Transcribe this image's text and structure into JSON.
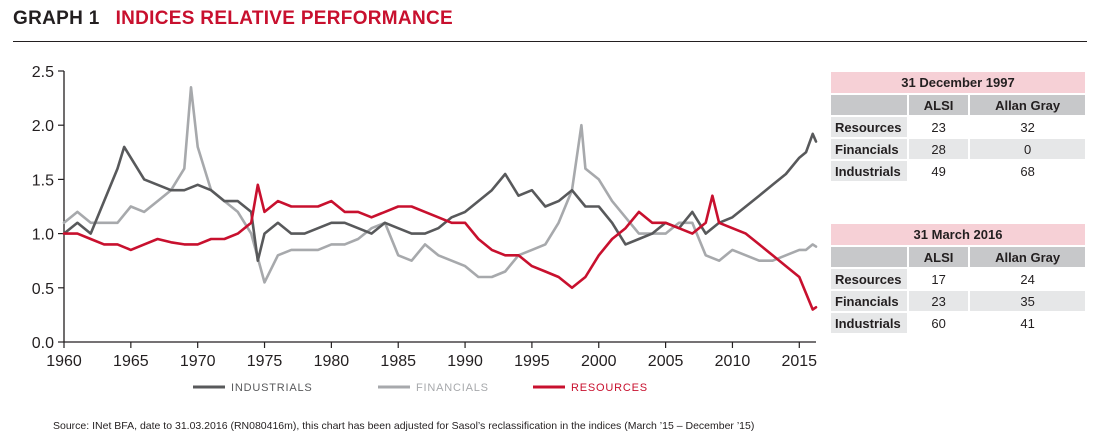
{
  "header": {
    "graph_label": "GRAPH 1",
    "title": "INDICES RELATIVE PERFORMANCE"
  },
  "colors": {
    "industrials": "#58595b",
    "financials": "#a7a9ac",
    "resources": "#c8102e",
    "title_red": "#c8102e"
  },
  "chart_data": {
    "type": "line",
    "title": "INDICES RELATIVE PERFORMANCE",
    "xlabel": "",
    "ylabel": "",
    "xlim": [
      1960,
      2016.25
    ],
    "ylim": [
      0,
      2.5
    ],
    "x_ticks": [
      "1960",
      "1965",
      "1970",
      "1975",
      "1980",
      "1985",
      "1990",
      "1995",
      "2000",
      "2005",
      "2010",
      "2015"
    ],
    "y_ticks": [
      "0.0",
      "0.5",
      "1.0",
      "1.5",
      "2.0",
      "2.5"
    ],
    "grid": false,
    "legend_position": "bottom",
    "series": [
      {
        "name": "INDUSTRIALS",
        "color": "#58595b",
        "x": [
          1960,
          1961,
          1962,
          1963,
          1964,
          1964.5,
          1965,
          1966,
          1967,
          1968,
          1969,
          1970,
          1971,
          1972,
          1973,
          1974,
          1974.5,
          1975,
          1976,
          1977,
          1978,
          1979,
          1980,
          1981,
          1982,
          1983,
          1984,
          1985,
          1986,
          1987,
          1988,
          1989,
          1990,
          1991,
          1992,
          1993,
          1994,
          1995,
          1996,
          1997,
          1998,
          1999,
          2000,
          2001,
          2002,
          2003,
          2004,
          2005,
          2006,
          2007,
          2008,
          2009,
          2010,
          2011,
          2012,
          2013,
          2014,
          2015,
          2015.5,
          2016,
          2016.25
        ],
        "y": [
          1.0,
          1.1,
          1.0,
          1.3,
          1.6,
          1.8,
          1.7,
          1.5,
          1.45,
          1.4,
          1.4,
          1.45,
          1.4,
          1.3,
          1.3,
          1.2,
          0.75,
          1.0,
          1.1,
          1.0,
          1.0,
          1.05,
          1.1,
          1.1,
          1.05,
          1.0,
          1.1,
          1.05,
          1.0,
          1.0,
          1.05,
          1.15,
          1.2,
          1.3,
          1.4,
          1.55,
          1.35,
          1.4,
          1.25,
          1.3,
          1.4,
          1.25,
          1.25,
          1.1,
          0.9,
          0.95,
          1.0,
          1.1,
          1.05,
          1.2,
          1.0,
          1.1,
          1.15,
          1.25,
          1.35,
          1.45,
          1.55,
          1.7,
          1.75,
          1.92,
          1.85
        ]
      },
      {
        "name": "FINANCIALS",
        "color": "#a7a9ac",
        "x": [
          1960,
          1961,
          1962,
          1963,
          1964,
          1965,
          1966,
          1967,
          1968,
          1969,
          1969.5,
          1970,
          1971,
          1972,
          1973,
          1974,
          1975,
          1976,
          1977,
          1978,
          1979,
          1980,
          1981,
          1982,
          1983,
          1984,
          1985,
          1986,
          1987,
          1988,
          1989,
          1990,
          1991,
          1992,
          1993,
          1994,
          1995,
          1996,
          1997,
          1998,
          1998.7,
          1999,
          2000,
          2001,
          2002,
          2003,
          2004,
          2005,
          2006,
          2007,
          2008,
          2009,
          2010,
          2011,
          2012,
          2013,
          2014,
          2015,
          2015.5,
          2016,
          2016.25
        ],
        "y": [
          1.1,
          1.2,
          1.1,
          1.1,
          1.1,
          1.25,
          1.2,
          1.3,
          1.4,
          1.6,
          2.35,
          1.8,
          1.4,
          1.3,
          1.2,
          1.0,
          0.55,
          0.8,
          0.85,
          0.85,
          0.85,
          0.9,
          0.9,
          0.95,
          1.05,
          1.1,
          0.8,
          0.75,
          0.9,
          0.8,
          0.75,
          0.7,
          0.6,
          0.6,
          0.65,
          0.8,
          0.85,
          0.9,
          1.1,
          1.4,
          2.0,
          1.6,
          1.5,
          1.3,
          1.15,
          1.0,
          1.0,
          1.0,
          1.1,
          1.1,
          0.8,
          0.75,
          0.85,
          0.8,
          0.75,
          0.75,
          0.8,
          0.85,
          0.85,
          0.9,
          0.88
        ]
      },
      {
        "name": "RESOURCES",
        "color": "#c8102e",
        "x": [
          1960,
          1961,
          1962,
          1963,
          1964,
          1965,
          1966,
          1967,
          1968,
          1969,
          1970,
          1971,
          1972,
          1973,
          1974,
          1974.5,
          1975,
          1976,
          1977,
          1978,
          1979,
          1980,
          1981,
          1982,
          1983,
          1984,
          1985,
          1986,
          1987,
          1988,
          1989,
          1990,
          1991,
          1992,
          1993,
          1994,
          1995,
          1996,
          1997,
          1998,
          1999,
          2000,
          2001,
          2002,
          2003,
          2004,
          2005,
          2006,
          2007,
          2008,
          2008.5,
          2009,
          2010,
          2011,
          2012,
          2013,
          2014,
          2015,
          2015.5,
          2016,
          2016.25
        ],
        "y": [
          1.0,
          1.0,
          0.95,
          0.9,
          0.9,
          0.85,
          0.9,
          0.95,
          0.92,
          0.9,
          0.9,
          0.95,
          0.95,
          1.0,
          1.1,
          1.45,
          1.2,
          1.3,
          1.25,
          1.25,
          1.25,
          1.3,
          1.2,
          1.2,
          1.15,
          1.2,
          1.25,
          1.25,
          1.2,
          1.15,
          1.1,
          1.1,
          0.95,
          0.85,
          0.8,
          0.8,
          0.7,
          0.65,
          0.6,
          0.5,
          0.6,
          0.8,
          0.95,
          1.05,
          1.2,
          1.1,
          1.1,
          1.05,
          1.0,
          1.1,
          1.35,
          1.1,
          1.05,
          1.0,
          0.9,
          0.8,
          0.7,
          0.6,
          0.45,
          0.3,
          0.32
        ]
      }
    ]
  },
  "tables": [
    {
      "title": "31 December 1997",
      "columns": [
        "ALSI",
        "Allan Gray"
      ],
      "rows": [
        {
          "label": "Resources",
          "alsi": "23",
          "allan_gray": "32"
        },
        {
          "label": "Financials",
          "alsi": "28",
          "allan_gray": "0"
        },
        {
          "label": "Industrials",
          "alsi": "49",
          "allan_gray": "68"
        }
      ]
    },
    {
      "title": "31 March 2016",
      "columns": [
        "ALSI",
        "Allan Gray"
      ],
      "rows": [
        {
          "label": "Resources",
          "alsi": "17",
          "allan_gray": "24"
        },
        {
          "label": "Financials",
          "alsi": "23",
          "allan_gray": "35"
        },
        {
          "label": "Industrials",
          "alsi": "60",
          "allan_gray": "41"
        }
      ]
    }
  ],
  "source": "Source: INet BFA, date to 31.03.2016 (RN080416m), this chart has been adjusted for Sasol’s reclassification in the indices (March ’15 – December ’15)"
}
